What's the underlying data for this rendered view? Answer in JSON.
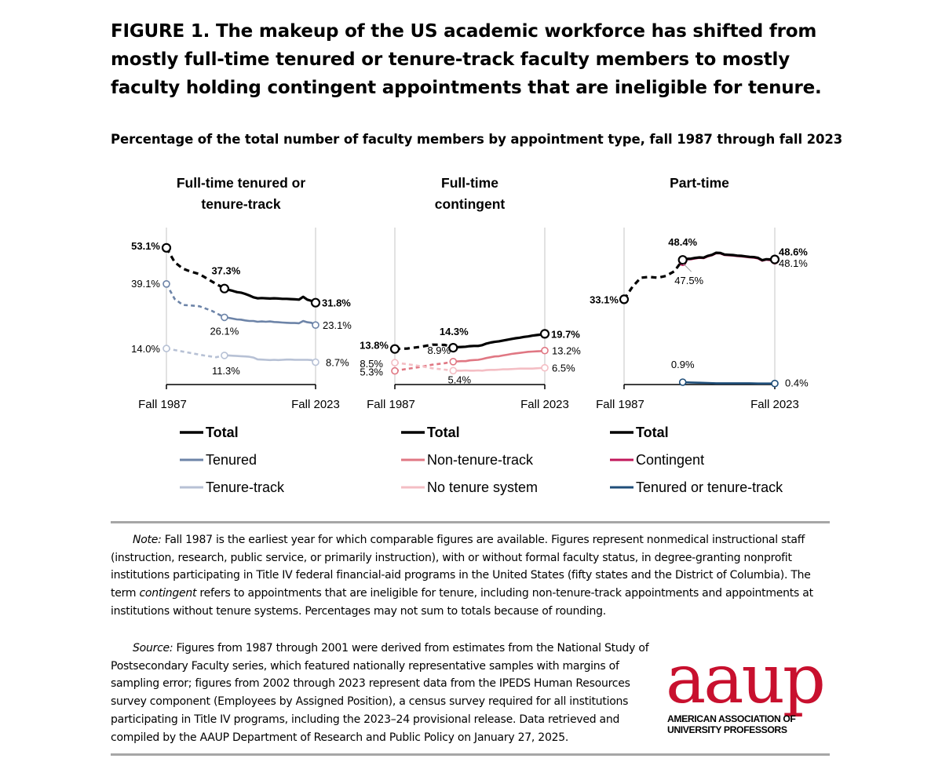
{
  "figure": {
    "title": "FIGURE 1. The makeup of the US academic workforce has shifted from mostly full-time tenured or tenure-track faculty members to mostly faculty holding contingent appointments that are ineligible for tenure.",
    "subtitle": "Percentage of the total number of faculty members by appointment type, fall 1987 through fall 2023"
  },
  "colors": {
    "total": "#000000",
    "tenured": "#6d84a8",
    "tenure_track": "#b7c1d5",
    "non_tenure_track": "#e07783",
    "no_tenure_system": "#f4bec4",
    "contingent": "#c2185b",
    "tenured_or_tt": "#1f4e79",
    "axis": "#000000",
    "gridline": "#d9d9d9",
    "rule": "#a6a6a6",
    "logo": "#c8102e"
  },
  "chart_data": [
    {
      "type": "line",
      "panel_title": [
        "Full-time tenured or",
        "tenure-track"
      ],
      "x_labels": [
        "Fall 1987",
        "Fall 2023"
      ],
      "x_range": [
        1987,
        2023
      ],
      "y_range": [
        0,
        60
      ],
      "series": [
        {
          "name": "Total",
          "color_key": "total",
          "x": [
            1987,
            1989,
            1991,
            1993,
            1995,
            1998,
            2001,
            2002,
            2003,
            2004,
            2005,
            2006,
            2007,
            2008,
            2009,
            2010,
            2011,
            2012,
            2013,
            2014,
            2015,
            2016,
            2017,
            2018,
            2019,
            2020,
            2021,
            2022,
            2023
          ],
          "y": [
            53.1,
            47.5,
            45.0,
            43.8,
            42.9,
            40.0,
            37.3,
            36.8,
            36.4,
            35.9,
            35.7,
            35.2,
            34.6,
            33.9,
            33.5,
            33.6,
            33.5,
            33.4,
            33.5,
            33.4,
            33.3,
            33.3,
            33.2,
            33.1,
            33.0,
            34.1,
            33.0,
            32.5,
            31.8
          ]
        },
        {
          "name": "Tenured",
          "color_key": "tenured",
          "x": [
            1987,
            1989,
            1991,
            1993,
            1995,
            1998,
            2001,
            2002,
            2003,
            2004,
            2005,
            2006,
            2007,
            2008,
            2009,
            2010,
            2011,
            2012,
            2013,
            2014,
            2015,
            2016,
            2017,
            2018,
            2019,
            2020,
            2021,
            2022,
            2023
          ],
          "y": [
            39.1,
            33.2,
            30.9,
            30.7,
            30.4,
            28.6,
            26.1,
            25.9,
            25.6,
            25.3,
            25.2,
            24.9,
            24.7,
            24.7,
            24.4,
            24.5,
            24.4,
            24.5,
            24.3,
            24.2,
            24.1,
            24.0,
            23.9,
            23.9,
            23.8,
            24.7,
            24.2,
            24.0,
            23.1
          ]
        },
        {
          "name": "Tenure-track",
          "color_key": "tenure_track",
          "x": [
            1987,
            1990,
            1993,
            1996,
            1999,
            2001,
            2002,
            2003,
            2004,
            2005,
            2006,
            2007,
            2008,
            2009,
            2010,
            2011,
            2012,
            2013,
            2014,
            2015,
            2016,
            2017,
            2018,
            2019,
            2020,
            2021,
            2022,
            2023
          ],
          "y": [
            14.0,
            13.1,
            12.2,
            11.3,
            10.6,
            11.3,
            11.3,
            11.2,
            11.1,
            11.0,
            10.9,
            10.8,
            10.5,
            9.8,
            9.7,
            9.6,
            9.5,
            9.6,
            9.5,
            9.6,
            9.7,
            9.7,
            9.6,
            9.6,
            9.6,
            9.6,
            9.5,
            8.7
          ]
        }
      ],
      "data_labels": [
        {
          "text": "53.1%",
          "series": "Total",
          "year": 1987,
          "bold": true
        },
        {
          "text": "37.3%",
          "series": "Total",
          "year": 2001,
          "bold": true
        },
        {
          "text": "31.8%",
          "series": "Total",
          "year": 2023,
          "bold": true
        },
        {
          "text": "39.1%",
          "series": "Tenured",
          "year": 1987
        },
        {
          "text": "26.1%",
          "series": "Tenured",
          "year": 2001
        },
        {
          "text": "23.1%",
          "series": "Tenured",
          "year": 2023
        },
        {
          "text": "14.0%",
          "series": "Tenure-track",
          "year": 1987
        },
        {
          "text": "11.3%",
          "series": "Tenure-track",
          "year": 2001
        },
        {
          "text": "8.7%",
          "series": "Tenure-track",
          "year": 2023
        }
      ],
      "legend": [
        "Total",
        "Tenured",
        "Tenure-track"
      ]
    },
    {
      "type": "line",
      "panel_title": [
        "Full-time",
        "contingent"
      ],
      "x_labels": [
        "Fall 1987",
        "Fall 2023"
      ],
      "x_range": [
        1987,
        2023
      ],
      "y_range": [
        0,
        60
      ],
      "series": [
        {
          "name": "Total",
          "color_key": "total",
          "x": [
            1987,
            1990,
            1993,
            1996,
            1999,
            2001,
            2002,
            2003,
            2004,
            2005,
            2006,
            2007,
            2008,
            2009,
            2010,
            2011,
            2012,
            2013,
            2014,
            2015,
            2016,
            2017,
            2018,
            2019,
            2020,
            2021,
            2022,
            2023
          ],
          "y": [
            13.8,
            14.0,
            14.6,
            15.5,
            15.4,
            14.3,
            14.5,
            14.6,
            14.7,
            14.9,
            15.0,
            15.0,
            15.3,
            15.9,
            16.3,
            16.6,
            16.8,
            17.1,
            17.4,
            17.7,
            18.0,
            18.2,
            18.5,
            18.7,
            19.0,
            19.2,
            19.4,
            19.7
          ]
        },
        {
          "name": "Non-tenure-track",
          "color_key": "non_tenure_track",
          "x": [
            1987,
            1990,
            1993,
            1996,
            1999,
            2001,
            2002,
            2003,
            2004,
            2005,
            2006,
            2007,
            2008,
            2009,
            2010,
            2011,
            2012,
            2013,
            2014,
            2015,
            2016,
            2017,
            2018,
            2019,
            2020,
            2021,
            2022,
            2023
          ],
          "y": [
            5.3,
            6.1,
            6.8,
            7.7,
            8.3,
            8.9,
            9.0,
            9.1,
            9.1,
            9.4,
            9.5,
            9.6,
            9.9,
            10.3,
            10.6,
            10.9,
            11.0,
            11.3,
            11.6,
            11.9,
            12.1,
            12.3,
            12.5,
            12.7,
            12.8,
            12.9,
            13.0,
            13.2
          ]
        },
        {
          "name": "No tenure system",
          "color_key": "no_tenure_system",
          "x": [
            1987,
            1990,
            1993,
            1996,
            1999,
            2001,
            2002,
            2003,
            2004,
            2005,
            2006,
            2007,
            2008,
            2009,
            2010,
            2011,
            2012,
            2013,
            2014,
            2015,
            2016,
            2017,
            2018,
            2019,
            2020,
            2021,
            2022,
            2023
          ],
          "y": [
            8.5,
            7.9,
            7.2,
            6.3,
            5.8,
            5.4,
            5.4,
            5.4,
            5.5,
            5.4,
            5.4,
            5.5,
            5.4,
            5.6,
            5.7,
            5.7,
            5.8,
            5.9,
            5.9,
            6.0,
            6.1,
            6.2,
            6.2,
            6.2,
            6.2,
            6.3,
            6.4,
            6.5
          ]
        }
      ],
      "data_labels": [
        {
          "text": "13.8%",
          "series": "Total",
          "year": 1987,
          "bold": true
        },
        {
          "text": "14.3%",
          "series": "Total",
          "year": 2001,
          "bold": true
        },
        {
          "text": "19.7%",
          "series": "Total",
          "year": 2023,
          "bold": true
        },
        {
          "text": "8.5%",
          "series": "No tenure system",
          "year": 1987
        },
        {
          "text": "5.3%",
          "series": "Non-tenure-track",
          "year": 1987
        },
        {
          "text": "8.9%",
          "series": "Non-tenure-track",
          "year": 2001
        },
        {
          "text": "5.4%",
          "series": "No tenure system",
          "year": 2001
        },
        {
          "text": "13.2%",
          "series": "Non-tenure-track",
          "year": 2023
        },
        {
          "text": "6.5%",
          "series": "No tenure system",
          "year": 2023
        }
      ],
      "legend": [
        "Total",
        "Non-tenure-track",
        "No tenure system"
      ]
    },
    {
      "type": "line",
      "panel_title": [
        "Part-time"
      ],
      "x_labels": [
        "Fall 1987",
        "Fall 2023"
      ],
      "x_range": [
        1987,
        2023
      ],
      "y_range": [
        0,
        60
      ],
      "series": [
        {
          "name": "Total",
          "color_key": "total",
          "x": [
            1987,
            1989,
            1991,
            1993,
            1995,
            1997,
            1999,
            2001,
            2002,
            2003,
            2004,
            2005,
            2006,
            2007,
            2008,
            2009,
            2010,
            2011,
            2012,
            2013,
            2014,
            2015,
            2016,
            2017,
            2018,
            2019,
            2020,
            2021,
            2022,
            2023
          ],
          "y": [
            33.1,
            38.0,
            41.5,
            41.8,
            41.5,
            42.2,
            44.0,
            48.4,
            48.8,
            48.9,
            49.2,
            49.4,
            49.3,
            50.0,
            50.4,
            51.2,
            51.1,
            50.5,
            50.4,
            50.3,
            50.1,
            50.0,
            49.8,
            49.6,
            49.5,
            49.2,
            48.3,
            48.7,
            48.6,
            48.6
          ]
        },
        {
          "name": "Contingent",
          "color_key": "contingent",
          "x": [
            2001,
            2002,
            2003,
            2004,
            2005,
            2006,
            2007,
            2008,
            2009,
            2010,
            2011,
            2012,
            2013,
            2014,
            2015,
            2016,
            2017,
            2018,
            2019,
            2020,
            2021,
            2022,
            2023
          ],
          "y": [
            47.5,
            48.6,
            48.7,
            49.0,
            49.2,
            49.1,
            49.8,
            50.2,
            51.0,
            50.9,
            50.3,
            50.2,
            50.1,
            49.9,
            49.8,
            49.6,
            49.4,
            49.3,
            49.0,
            48.1,
            48.5,
            48.3,
            48.1
          ]
        },
        {
          "name": "Tenured or tenure-track",
          "color_key": "tenured_or_tt",
          "x": [
            2001,
            2003,
            2005,
            2007,
            2009,
            2011,
            2013,
            2015,
            2017,
            2019,
            2021,
            2023
          ],
          "y": [
            0.9,
            0.8,
            0.7,
            0.6,
            0.5,
            0.5,
            0.5,
            0.5,
            0.5,
            0.4,
            0.4,
            0.4
          ]
        }
      ],
      "data_labels": [
        {
          "text": "33.1%",
          "series": "Total",
          "year": 1987,
          "bold": true
        },
        {
          "text": "48.4%",
          "series": "Total",
          "year": 2001,
          "bold": true
        },
        {
          "text": "47.5%",
          "series": "Contingent",
          "year": 2001
        },
        {
          "text": "48.6%",
          "series": "Total",
          "year": 2023,
          "bold": true
        },
        {
          "text": "48.1%",
          "series": "Contingent",
          "year": 2023
        },
        {
          "text": "0.9%",
          "series": "Tenured or tenure-track",
          "year": 2001
        },
        {
          "text": "0.4%",
          "series": "Tenured or tenure-track",
          "year": 2023
        }
      ],
      "legend": [
        "Total",
        "Contingent",
        "Tenured or tenure-track"
      ]
    }
  ],
  "note": {
    "label": "Note:",
    "text_1": " Fall 1987 is the earliest year for which comparable figures are available. Figures represent nonmedical instructional staff (instruction, research, public service, or primarily instruction), with or without formal faculty status, in degree-granting nonprofit institutions participating in Title IV federal financial-aid programs in the United States (fifty states and the District of Columbia). The term ",
    "term": "contingent",
    "text_2": " refers to appointments that are ineligible for tenure, including non-tenure-track appointments and appointments at institutions without tenure systems. Percentages may not sum to totals because of rounding."
  },
  "source": {
    "label": "Source:",
    "text": " Figures from 1987 through 2001 were derived from estimates from the National Study of Postsecondary Faculty series, which featured nationally representative samples with margins of sampling error; figures from 2002 through 2023 represent data from the IPEDS Human Resources survey component (Employees by Assigned Position), a census survey required for all institutions participating in Title IV programs, including the 2023–24 provisional release. Data retrieved and compiled by the AAUP Department of Research and Public Policy on January 27, 2025."
  },
  "logo": {
    "wordmark": "aaup",
    "name_line_1": "AMERICAN ASSOCIATION OF",
    "name_line_2": "UNIVERSITY PROFESSORS"
  }
}
